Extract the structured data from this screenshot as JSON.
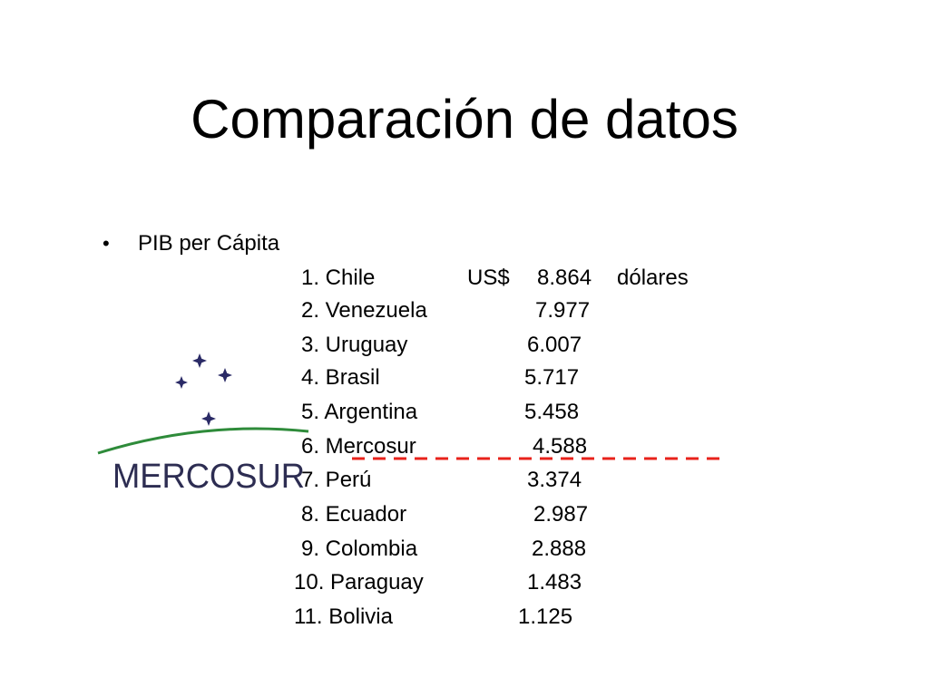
{
  "title": "Comparación de datos",
  "bullet_symbol": "•",
  "bullet_label": "PIB per Cápita",
  "rows": [
    {
      "country": "1. Chile",
      "currency": "US$",
      "value": "8.864",
      "unit": "dólares"
    },
    {
      "country": "2. Venezuela",
      "value": "7.977"
    },
    {
      "country": "3. Uruguay",
      "value": "6.007"
    },
    {
      "country": "4. Brasil",
      "value": "5.717"
    },
    {
      "country": "5. Argentina",
      "value": "5.458"
    },
    {
      "country": "6. Mercosur",
      "value": "4.588"
    },
    {
      "country": "7. Perú",
      "value": "3.374"
    },
    {
      "country": "8. Ecuador",
      "value": "2.987"
    },
    {
      "country": "9. Colombia",
      "value": "2.888"
    },
    {
      "country": "10. Paraguay",
      "value": "1.483"
    },
    {
      "country": "11. Bolivia",
      "value": "1.125"
    }
  ],
  "logo": {
    "text": "MERCOSUR",
    "text_color": "#2d2d52",
    "star_color": "#2a2a66",
    "arc_color": "#2e8b3a"
  },
  "divider_color": "#e8221b"
}
